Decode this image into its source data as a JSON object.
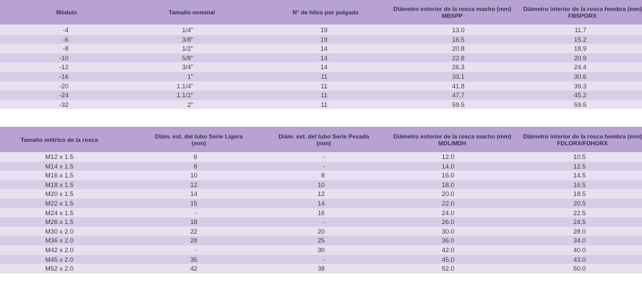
{
  "table1": {
    "headers": [
      {
        "line1": "Módulo",
        "line2": ""
      },
      {
        "line1": "Tamaño nominal",
        "line2": ""
      },
      {
        "line1": "N° de hilos por pulgada",
        "line2": ""
      },
      {
        "line1": "Diámetro exterior de la rosca macho (mm)",
        "line2": "MBSPP"
      },
      {
        "line1": "Diámetro interior de la rosca hembra (mm)",
        "line2": "FBSPORX"
      }
    ],
    "rows": [
      [
        "-4",
        "1/4\"",
        "19",
        "13.0",
        "11.7"
      ],
      [
        "-6",
        "3/8\"",
        "19",
        "16.5",
        "15.2"
      ],
      [
        "-8",
        "1/2\"",
        "14",
        "20.8",
        "18.9"
      ],
      [
        "-10",
        "5/8\"",
        "14",
        "22.8",
        "20.9"
      ],
      [
        "-12",
        "3/4\"",
        "14",
        "26.3",
        "24.4"
      ],
      [
        "-16",
        "1\"",
        "11",
        "33.1",
        "30.6"
      ],
      [
        "-20",
        "1.1/4\"",
        "11",
        "41.8",
        "39.3"
      ],
      [
        "-24",
        "1.1/2\"",
        "11",
        "47.7",
        "45.2"
      ],
      [
        "-32",
        "2\"",
        "11",
        "59.5",
        "59.5"
      ]
    ]
  },
  "table2": {
    "headers": [
      {
        "line1": "Tamaño métrico de la rosca",
        "line2": ""
      },
      {
        "line1": "Diám. ext. del tubo Serie Ligera",
        "line2": "(mm)"
      },
      {
        "line1": "Diám. ext. del tubo Serie Pesada",
        "line2": "(mm)"
      },
      {
        "line1": "Diámetro exterior de la rosca macho (mm)",
        "line2": "MDL/MDH"
      },
      {
        "line1": "Diámetro interior de la rosca hembra (mm)",
        "line2": "FDLORX/FDHORX"
      }
    ],
    "rows": [
      [
        "M12 x 1.5",
        "6",
        "-",
        "12.0",
        "10.5"
      ],
      [
        "M14 x 1.5",
        "8",
        "-",
        "14.0",
        "12.5"
      ],
      [
        "M16 x 1.5",
        "10",
        "8",
        "16.0",
        "14.5"
      ],
      [
        "M18 x 1.5",
        "12",
        "10",
        "18.0",
        "16.5"
      ],
      [
        "M20 x 1.5",
        "14",
        "12",
        "20.0",
        "18.5"
      ],
      [
        "M22 x 1.5",
        "15",
        "14",
        "22.0",
        "20.5"
      ],
      [
        "M24 x 1.5",
        "-",
        "16",
        "24.0",
        "22.5"
      ],
      [
        "M26 x 1.5",
        "18",
        "-",
        "26.0",
        "24.5"
      ],
      [
        "M30 x 2.0",
        "22",
        "20",
        "30.0",
        "28.0"
      ],
      [
        "M36 x 2.0",
        "28",
        "25",
        "36.0",
        "34.0"
      ],
      [
        "M42 x 2.0",
        "-",
        "30",
        "42.0",
        "40.0"
      ],
      [
        "M45 x 2.0",
        "35",
        "-",
        "45.0",
        "43.0"
      ],
      [
        "M52 x 2.0",
        "42",
        "38",
        "52.0",
        "50.0"
      ]
    ]
  }
}
